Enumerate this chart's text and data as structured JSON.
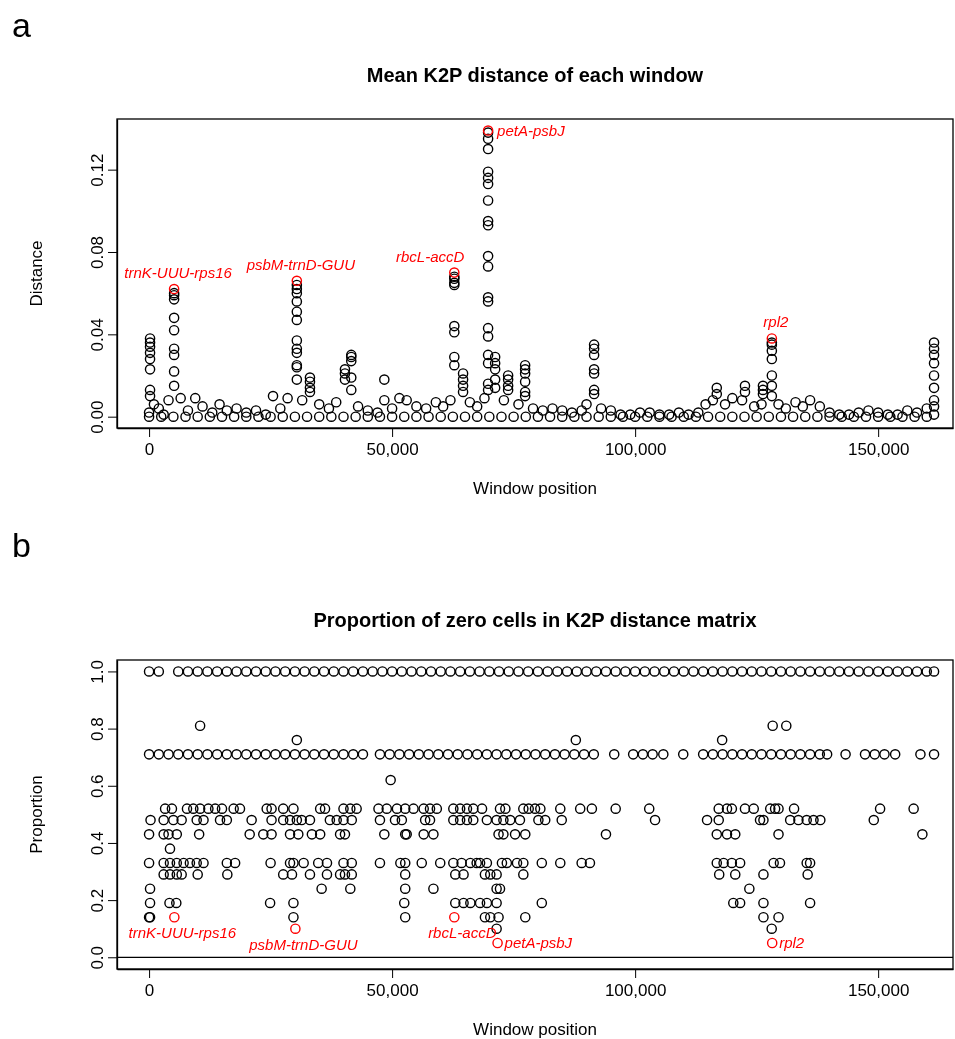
{
  "chart_data": [
    {
      "type": "scatter",
      "title": "Mean K2P distance of each window",
      "xlabel": "Window position",
      "ylabel": "Distance",
      "marker": "circle",
      "xlim": [
        -6600,
        165400
      ],
      "ylim": [
        -0.0055,
        0.1446
      ],
      "xticks": [
        0,
        {
          "value": 50000,
          "label": "50,000"
        },
        {
          "value": 100000,
          "label": "100,000"
        },
        {
          "value": 150000,
          "label": "150,000"
        }
      ],
      "yticks": [
        {
          "value": 0,
          "label": "0.00"
        },
        {
          "value": 0.04,
          "label": "0.04"
        },
        {
          "value": 0.08,
          "label": "0.08"
        },
        {
          "value": 0.12,
          "label": "0.12"
        }
      ],
      "annotations": [
        "a",
        {
          "text": "trnK-UUU-rps16",
          "x": 5150,
          "y": 0.062
        },
        {
          "text": "psbM-trnD-GUU",
          "x": 30400,
          "y": 0.066
        },
        {
          "text": "rbcL-accD",
          "x": 62800,
          "y": 0.07
        },
        {
          "text": "petA-psbJ",
          "x": 69750,
          "y": 0.139
        },
        {
          "text": "rpl2",
          "x": 128130,
          "y": 0.038
        }
      ],
      "series": [
        {
          "color": "#000000",
          "x": [
            0,
            1000,
            2000,
            3000,
            4000,
            6500,
            8000,
            9500,
            11000,
            13000,
            14500,
            16000,
            18000,
            20000,
            22000,
            24000,
            25500,
            27000,
            28500,
            31500,
            35000,
            37000,
            38500,
            43000,
            45000,
            47000,
            50000,
            51500,
            53000,
            55000,
            57000,
            59000,
            60500,
            62000,
            66000,
            67500,
            69000,
            73000,
            76000,
            79000,
            81000,
            83000,
            85000,
            87000,
            89000,
            90000,
            93000,
            95000,
            97000,
            99000,
            101000,
            103000,
            105000,
            107000,
            109000,
            111000,
            113000,
            114500,
            116000,
            118500,
            120000,
            122000,
            124500,
            126000,
            129500,
            131000,
            133000,
            134500,
            136000,
            138000,
            140000,
            142000,
            144000,
            146000,
            148000,
            150000,
            152000,
            154000,
            156000,
            158000,
            160000,
            161500
          ],
          "values": [
            0.002,
            0.006,
            0.004,
            0.001,
            0.008,
            0.009,
            0.003,
            0.009,
            0.005,
            0.002,
            0.006,
            0.003,
            0.004,
            0.002,
            0.003,
            0.001,
            0.01,
            0.004,
            0.009,
            0.008,
            0.006,
            0.004,
            0.007,
            0.005,
            0.003,
            0.002,
            0.004,
            0.009,
            0.008,
            0.005,
            0.004,
            0.007,
            0.005,
            0.008,
            0.007,
            0.005,
            0.009,
            0.008,
            0.006,
            0.004,
            0.003,
            0.004,
            0.003,
            0.002,
            0.003,
            0.006,
            0.004,
            0.003,
            0.001,
            0.001,
            0.002,
            0.002,
            0.001,
            0.001,
            0.002,
            0.001,
            0.002,
            0.006,
            0.008,
            0.006,
            0.009,
            0.008,
            0.005,
            0.006,
            0.006,
            0.004,
            0.007,
            0.005,
            0.008,
            0.005,
            0.002,
            0.001,
            0.001,
            0.002,
            0.003,
            0.002,
            0.001,
            0.001,
            0.003,
            0.002,
            0.004,
            0.001
          ]
        },
        {
          "color": "#000000",
          "x": [
            0,
            2500,
            5000,
            7500,
            10000,
            12500,
            15000,
            17500,
            20000,
            22500,
            25000,
            27500,
            30000,
            32500,
            35000,
            37500,
            40000,
            42500,
            45000,
            47500,
            50000,
            52500,
            55000,
            57500,
            60000,
            62500,
            65000,
            67500,
            70000,
            72500,
            75000,
            77500,
            80000,
            82500,
            85000,
            87500,
            90000,
            92500,
            95000,
            97500,
            100000,
            102500,
            105000,
            107500,
            110000,
            112500,
            115000,
            117500,
            120000,
            122500,
            125000,
            127500,
            130000,
            132500,
            135000,
            137500,
            140000,
            142500,
            145000,
            147500,
            150000,
            152500,
            155000,
            157500,
            160000
          ],
          "values": [
            0,
            0,
            0,
            0,
            0,
            0,
            0,
            0,
            0,
            0,
            0,
            0,
            0,
            0,
            0,
            0,
            0,
            0,
            0,
            0,
            0,
            0,
            0,
            0,
            0,
            0,
            0,
            0,
            0,
            0,
            0,
            0,
            0,
            0,
            0,
            0,
            0,
            0,
            0,
            0,
            0,
            0,
            0,
            0,
            0,
            0,
            0,
            0,
            0,
            0,
            0,
            0,
            0,
            0,
            0,
            0,
            0,
            0,
            0,
            0,
            0,
            0,
            0,
            0,
            0
          ]
        },
        {
          "color": "#000000",
          "x": [
            200,
            200,
            200,
            200,
            200,
            200,
            200,
            200
          ],
          "values": [
            0.038,
            0.036,
            0.034,
            0.031,
            0.028,
            0.023,
            0.013,
            0.01
          ]
        },
        {
          "color": "#000000",
          "x": [
            5150,
            5150,
            5150,
            5150,
            5150,
            5150,
            5150,
            5150,
            5150
          ],
          "values": [
            0.06,
            0.059,
            0.057,
            0.048,
            0.042,
            0.033,
            0.03,
            0.022,
            0.015
          ]
        },
        {
          "color": "#000000",
          "x": [
            30400,
            30400,
            30400,
            30400,
            30400,
            30400,
            30400,
            30400,
            30400,
            30400,
            30400,
            30400
          ],
          "values": [
            0.064,
            0.062,
            0.06,
            0.056,
            0.051,
            0.047,
            0.037,
            0.033,
            0.031,
            0.025,
            0.024,
            0.018
          ]
        },
        {
          "color": "#000000",
          "x": [
            33100,
            33100,
            33100,
            33100
          ],
          "values": [
            0.019,
            0.017,
            0.014,
            0.012
          ]
        },
        {
          "color": "#000000",
          "x": [
            40300,
            40300,
            40300
          ],
          "values": [
            0.023,
            0.021,
            0.018
          ]
        },
        {
          "color": "#000000",
          "x": [
            41600,
            41600,
            41600,
            41600,
            41600
          ],
          "values": [
            0.03,
            0.029,
            0.027,
            0.019,
            0.013
          ]
        },
        {
          "color": "#000000",
          "x": [
            48400,
            48400
          ],
          "values": [
            0.018,
            0.008
          ]
        },
        {
          "color": "#000000",
          "x": [
            62800,
            62800,
            62800,
            62800,
            62800,
            62800,
            62800,
            62800
          ],
          "values": [
            0.068,
            0.067,
            0.065,
            0.064,
            0.044,
            0.041,
            0.029,
            0.025
          ]
        },
        {
          "color": "#000000",
          "x": [
            64600,
            64600,
            64600,
            64600
          ],
          "values": [
            0.021,
            0.018,
            0.015,
            0.012
          ]
        },
        {
          "color": "#000000",
          "x": [
            69750,
            69750,
            69750,
            69750,
            69750,
            69750,
            69750,
            69750,
            69750,
            69750,
            69750,
            69750,
            69750,
            69750,
            69750,
            69750,
            69750,
            69750,
            69750
          ],
          "values": [
            0.138,
            0.135,
            0.13,
            0.119,
            0.116,
            0.113,
            0.105,
            0.095,
            0.093,
            0.078,
            0.073,
            0.058,
            0.056,
            0.043,
            0.039,
            0.03,
            0.026,
            0.016,
            0.013
          ]
        },
        {
          "color": "#000000",
          "x": [
            71200,
            71200,
            71200,
            71200,
            71200
          ],
          "values": [
            0.029,
            0.026,
            0.023,
            0.018,
            0.014
          ]
        },
        {
          "color": "#000000",
          "x": [
            73870,
            73870,
            73870,
            73870
          ],
          "values": [
            0.02,
            0.018,
            0.015,
            0.013
          ]
        },
        {
          "color": "#000000",
          "x": [
            77370,
            77370,
            77370,
            77370,
            77370,
            77370
          ],
          "values": [
            0.025,
            0.023,
            0.021,
            0.017,
            0.012,
            0.01
          ]
        },
        {
          "color": "#000000",
          "x": [
            91560,
            91560,
            91560,
            91560,
            91560,
            91560,
            91560
          ],
          "values": [
            0.035,
            0.033,
            0.03,
            0.023,
            0.021,
            0.013,
            0.011
          ]
        },
        {
          "color": "#000000",
          "x": [
            116800,
            116800,
            122600,
            122600,
            126300,
            126300,
            126300
          ],
          "values": [
            0.014,
            0.011,
            0.015,
            0.012,
            0.015,
            0.013,
            0.011
          ]
        },
        {
          "color": "#000000",
          "x": [
            128130,
            128130,
            128130,
            128130,
            128130,
            128130,
            128130
          ],
          "values": [
            0.036,
            0.035,
            0.032,
            0.028,
            0.02,
            0.015,
            0.01
          ]
        },
        {
          "color": "#000000",
          "x": [
            161500,
            161500,
            161500,
            161500,
            161500,
            161500,
            161500,
            161500
          ],
          "values": [
            0.036,
            0.033,
            0.03,
            0.026,
            0.02,
            0.014,
            0.008,
            0.005
          ]
        },
        {
          "color": "#ff0000",
          "x": [
            5150,
            30400,
            62800,
            69750,
            128130
          ],
          "values": [
            0.062,
            0.066,
            0.07,
            0.139,
            0.038
          ]
        }
      ]
    },
    {
      "type": "scatter",
      "title": "Proportion of zero cells in K2P distance matrix",
      "xlabel": "Window position",
      "ylabel": "Proportion",
      "marker": "circle",
      "xlim": [
        -6600,
        165400
      ],
      "ylim": [
        -0.041,
        1.04
      ],
      "xticks": [
        0,
        {
          "value": 50000,
          "label": "50,000"
        },
        {
          "value": 100000,
          "label": "100,000"
        },
        {
          "value": 150000,
          "label": "150,000"
        }
      ],
      "yticks": [
        {
          "value": 0,
          "label": "0.0"
        },
        {
          "value": 0.2,
          "label": "0.2"
        },
        {
          "value": 0.4,
          "label": "0.4"
        },
        {
          "value": 0.6,
          "label": "0.6"
        },
        {
          "value": 0.8,
          "label": "0.8"
        },
        {
          "value": 1,
          "label": "1.0"
        }
      ],
      "ref_lines": [
        {
          "axis": "y",
          "value": 0
        }
      ],
      "annotations": [
        "b",
        {
          "text": "trnK-UUU-rps16",
          "x": 5200,
          "y": 0.14
        },
        {
          "text": "psbM-trnD-GUU",
          "x": 30100,
          "y": 0.1
        },
        {
          "text": "rbcL-accD",
          "x": 62800,
          "y": 0.14
        },
        {
          "text": "petA-psbJ",
          "x": 71700,
          "y": 0.05
        },
        {
          "text": "rpl2",
          "x": 128200,
          "y": 0.05
        }
      ],
      "series": [
        {
          "color": "#000000",
          "x": [
            0,
            2000,
            6000,
            8000,
            10000,
            12000,
            14000,
            16000,
            18000,
            20000,
            22000,
            24000,
            26000,
            28000,
            30000,
            32000,
            34000,
            36000,
            38000,
            40000,
            42000,
            44000,
            46000,
            48000,
            50000,
            52000,
            54000,
            56000,
            58000,
            60000,
            62000,
            64000,
            66000,
            68000,
            70000,
            72000,
            74000,
            76000,
            78000,
            80000,
            82000,
            84000,
            86000,
            88000,
            90000,
            92000,
            94000,
            96000,
            98000,
            100000,
            102000,
            104000,
            106000,
            108000,
            110000,
            112000,
            114000,
            116000,
            118000,
            120000,
            122000,
            124000,
            126000,
            128000,
            130000,
            132000,
            134000,
            136000,
            138000,
            140000,
            142000,
            144000,
            146000,
            148000,
            150000,
            152000,
            154000,
            156000,
            158000,
            160000,
            161500
          ],
          "values": [
            1,
            1,
            1,
            1,
            1,
            1,
            1,
            1,
            1,
            1,
            1,
            1,
            1,
            1,
            1,
            1,
            1,
            1,
            1,
            1,
            1,
            1,
            1,
            1,
            1,
            1,
            1,
            1,
            1,
            1,
            1,
            1,
            1,
            1,
            1,
            1,
            1,
            1,
            1,
            1,
            1,
            1,
            1,
            1,
            1,
            1,
            1,
            1,
            1,
            1,
            1,
            1,
            1,
            1,
            1,
            1,
            1,
            1,
            1,
            1,
            1,
            1,
            1,
            1,
            1,
            1,
            1,
            1,
            1,
            1,
            1,
            1,
            1,
            1,
            1,
            1,
            1,
            1,
            1,
            1,
            1
          ]
        },
        {
          "color": "#000000",
          "x": [
            0,
            2000,
            4000,
            6000,
            8000,
            10000,
            12000,
            14000,
            16000,
            18000,
            20000,
            22000,
            24000,
            26000,
            28000,
            30000,
            32000,
            34000,
            36000,
            38000,
            40000,
            42000,
            44000,
            47500,
            49500,
            51500,
            53500,
            55500,
            57500,
            59500,
            61500,
            63500,
            65500,
            67500,
            69500,
            71500,
            73500,
            75500,
            77500,
            79500,
            81500,
            83500,
            85500,
            87500,
            89500,
            91500,
            95700,
            99600,
            101600,
            103600,
            105800,
            109900,
            114000,
            116000,
            118000,
            120000,
            122000,
            124000,
            126000,
            128000,
            130000,
            132000,
            134000,
            136000,
            138000,
            139500,
            143300,
            147300,
            149300,
            151300,
            153500,
            158700,
            161500
          ],
          "values": [
            0.71,
            0.71,
            0.71,
            0.71,
            0.71,
            0.71,
            0.71,
            0.71,
            0.71,
            0.71,
            0.71,
            0.71,
            0.71,
            0.71,
            0.71,
            0.71,
            0.71,
            0.71,
            0.71,
            0.71,
            0.71,
            0.71,
            0.71,
            0.71,
            0.71,
            0.71,
            0.71,
            0.71,
            0.71,
            0.71,
            0.71,
            0.71,
            0.71,
            0.71,
            0.71,
            0.71,
            0.71,
            0.71,
            0.71,
            0.71,
            0.71,
            0.71,
            0.71,
            0.71,
            0.71,
            0.71,
            0.71,
            0.71,
            0.71,
            0.71,
            0.71,
            0.71,
            0.71,
            0.71,
            0.71,
            0.71,
            0.71,
            0.71,
            0.71,
            0.71,
            0.71,
            0.71,
            0.71,
            0.71,
            0.71,
            0.71,
            0.71,
            0.71,
            0.71,
            0.71,
            0.71,
            0.71,
            0.71
          ]
        },
        {
          "color": "#000000",
          "x": [
            10500,
            128300,
            131100,
            30400,
            87800,
            117900,
            49700,
            4300
          ],
          "values": [
            0.81,
            0.81,
            0.81,
            0.76,
            0.76,
            0.76,
            0.62,
            0.38
          ]
        },
        {
          "color": "#000000",
          "x": [
            3300,
            4700,
            7800,
            9100,
            10500,
            12200,
            13600,
            15000,
            17400,
            18700,
            24200,
            25200,
            27600,
            29700,
            35200,
            36200,
            40000,
            41400,
            42700,
            47200,
            48900,
            51000,
            52700,
            54400,
            56500,
            57800,
            59200,
            62600,
            64000,
            65400,
            66700,
            68500,
            72200,
            73300,
            77000,
            78100,
            79400,
            80500,
            84600,
            88700,
            91100,
            96000,
            102900,
            117200,
            118900,
            119900,
            122600,
            124400,
            127800,
            128800,
            129500,
            132700,
            150400,
            157300
          ],
          "values": [
            0.52,
            0.52,
            0.52,
            0.52,
            0.52,
            0.52,
            0.52,
            0.52,
            0.52,
            0.52,
            0.52,
            0.52,
            0.52,
            0.52,
            0.52,
            0.52,
            0.52,
            0.52,
            0.52,
            0.52,
            0.52,
            0.52,
            0.52,
            0.52,
            0.52,
            0.52,
            0.52,
            0.52,
            0.52,
            0.52,
            0.52,
            0.52,
            0.52,
            0.52,
            0.52,
            0.52,
            0.52,
            0.52,
            0.52,
            0.52,
            0.52,
            0.52,
            0.52,
            0.52,
            0.52,
            0.52,
            0.52,
            0.52,
            0.52,
            0.52,
            0.52,
            0.52,
            0.52,
            0.52
          ]
        },
        {
          "color": "#000000",
          "x": [
            300,
            3000,
            5000,
            6700,
            9800,
            11200,
            14600,
            16000,
            21100,
            25200,
            27600,
            29000,
            30400,
            31400,
            33100,
            37200,
            38600,
            40000,
            41700,
            47500,
            50600,
            52000,
            56800,
            57800,
            62600,
            64000,
            65400,
            66700,
            69500,
            71500,
            72900,
            74300,
            76300,
            80100,
            81500,
            84900,
            104100,
            114800,
            117200,
            125700,
            126400,
            131900,
            133600,
            135300,
            136700,
            138100,
            149100
          ],
          "values": [
            0.48,
            0.48,
            0.48,
            0.48,
            0.48,
            0.48,
            0.48,
            0.48,
            0.48,
            0.48,
            0.48,
            0.48,
            0.48,
            0.48,
            0.48,
            0.48,
            0.48,
            0.48,
            0.48,
            0.48,
            0.48,
            0.48,
            0.48,
            0.48,
            0.48,
            0.48,
            0.48,
            0.48,
            0.48,
            0.48,
            0.48,
            0.48,
            0.48,
            0.48,
            0.48,
            0.48,
            0.48,
            0.48,
            0.48,
            0.48,
            0.48,
            0.48,
            0.48,
            0.48,
            0.48,
            0.48,
            0.48
          ]
        },
        {
          "color": "#000000",
          "x": [
            0,
            3000,
            4000,
            5700,
            10300,
            20700,
            23500,
            25200,
            29000,
            30700,
            33500,
            35200,
            39300,
            40300,
            48400,
            52700,
            53000,
            56500,
            58500,
            71900,
            72900,
            75300,
            77400,
            94000,
            116800,
            118900,
            120600,
            129500,
            159100
          ],
          "values": [
            0.43,
            0.43,
            0.43,
            0.43,
            0.43,
            0.43,
            0.43,
            0.43,
            0.43,
            0.43,
            0.43,
            0.43,
            0.43,
            0.43,
            0.43,
            0.43,
            0.43,
            0.43,
            0.43,
            0.43,
            0.43,
            0.43,
            0.43,
            0.43,
            0.43,
            0.43,
            0.43,
            0.43,
            0.43
          ]
        },
        {
          "color": "#000000",
          "x": [
            0,
            3000,
            4300,
            5700,
            7100,
            8400,
            9800,
            11200,
            16000,
            17700,
            25000,
            29000,
            29700,
            31800,
            34800,
            36600,
            40000,
            41700,
            47500,
            51700,
            52700,
            56100,
            59900,
            62600,
            64300,
            66100,
            67400,
            68100,
            69500,
            72600,
            73600,
            75700,
            77000,
            80800,
            84600,
            89000,
            90700,
            116800,
            118200,
            119900,
            121600,
            128500,
            129800,
            135300,
            136000
          ],
          "values": [
            0.33,
            0.33,
            0.33,
            0.33,
            0.33,
            0.33,
            0.33,
            0.33,
            0.33,
            0.33,
            0.33,
            0.33,
            0.33,
            0.33,
            0.33,
            0.33,
            0.33,
            0.33,
            0.33,
            0.33,
            0.33,
            0.33,
            0.33,
            0.33,
            0.33,
            0.33,
            0.33,
            0.33,
            0.33,
            0.33,
            0.33,
            0.33,
            0.33,
            0.33,
            0.33,
            0.33,
            0.33,
            0.33,
            0.33,
            0.33,
            0.33,
            0.33,
            0.33,
            0.33,
            0.33
          ]
        },
        {
          "color": "#000000",
          "x": [
            3000,
            4300,
            5700,
            6700,
            10000,
            16100,
            27600,
            29400,
            33100,
            36600,
            39300,
            40300,
            41700,
            52700,
            63000,
            64700,
            69100,
            70200,
            71500,
            77000,
            117300,
            120600,
            126400,
            135500
          ],
          "values": [
            0.29,
            0.29,
            0.29,
            0.29,
            0.29,
            0.29,
            0.29,
            0.29,
            0.29,
            0.29,
            0.29,
            0.29,
            0.29,
            0.29,
            0.29,
            0.29,
            0.29,
            0.29,
            0.29,
            0.29,
            0.29,
            0.29,
            0.29,
            0.29
          ]
        },
        {
          "color": "#000000",
          "x": [
            200,
            35500,
            41400,
            52700,
            58500,
            71500,
            72200,
            123500
          ],
          "values": [
            0.24,
            0.24,
            0.24,
            0.24,
            0.24,
            0.24,
            0.24,
            0.24
          ]
        },
        {
          "color": "#000000",
          "x": [
            200,
            4200,
            5600,
            24900,
            29700,
            52500,
            63000,
            64700,
            66100,
            68100,
            69500,
            71500,
            80800,
            120200,
            121600,
            126400,
            136000
          ],
          "values": [
            0.19,
            0.19,
            0.19,
            0.19,
            0.19,
            0.19,
            0.19,
            0.19,
            0.19,
            0.19,
            0.19,
            0.19,
            0.19,
            0.19,
            0.19,
            0.19,
            0.19
          ]
        },
        {
          "color": "#000000",
          "x": [
            0,
            200,
            29700,
            52700,
            69100,
            70200,
            71900,
            77400,
            126400,
            129500,
            71500,
            128100
          ],
          "values": [
            0.14,
            0.14,
            0.14,
            0.14,
            0.14,
            0.14,
            0.14,
            0.14,
            0.14,
            0.14,
            0.1,
            0.1
          ]
        },
        {
          "color": "#ff0000",
          "x": [
            5200,
            30100,
            62800,
            71700,
            128200
          ],
          "values": [
            0.14,
            0.1,
            0.14,
            0.05,
            0.05
          ]
        }
      ]
    }
  ]
}
